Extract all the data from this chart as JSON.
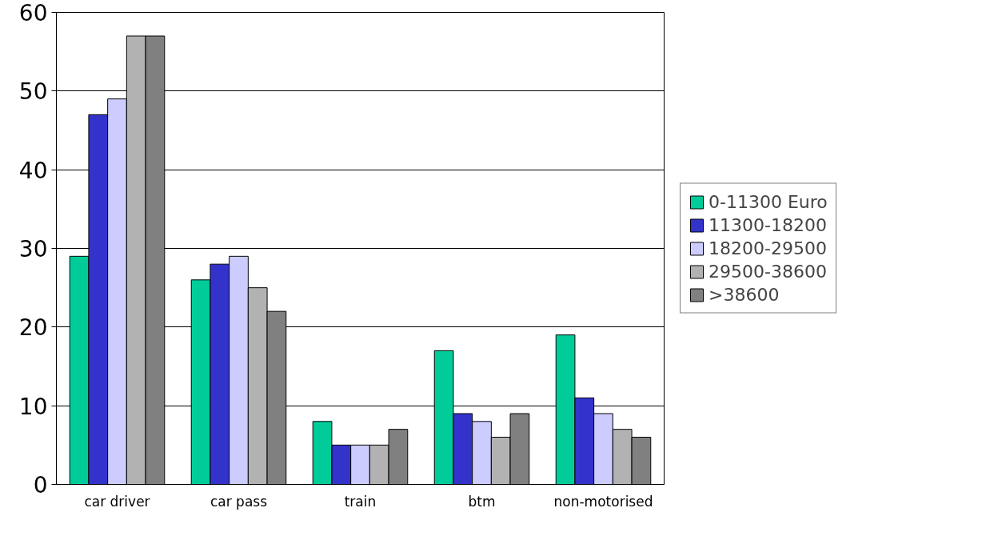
{
  "chart_data": {
    "type": "bar",
    "categories": [
      "car driver",
      "car pass",
      "train",
      "btm",
      "non-motorised"
    ],
    "series": [
      {
        "name": "0-11300 Euro",
        "color": "#00cc99",
        "values": [
          29,
          26,
          8,
          17,
          19
        ]
      },
      {
        "name": "11300-18200",
        "color": "#3333cc",
        "values": [
          47,
          28,
          5,
          9,
          11
        ]
      },
      {
        "name": "18200-29500",
        "color": "#ccccff",
        "values": [
          49,
          29,
          5,
          8,
          9
        ]
      },
      {
        "name": "29500-38600",
        "color": "#b2b2b2",
        "values": [
          57,
          25,
          5,
          6,
          7
        ]
      },
      {
        "name": ">38600",
        "color": "#808080",
        "values": [
          57,
          22,
          7,
          9,
          6
        ]
      }
    ],
    "ylim": [
      0,
      60
    ],
    "yticks": [
      0,
      10,
      20,
      30,
      40,
      50,
      60
    ],
    "grid": "y",
    "legend": "right"
  }
}
